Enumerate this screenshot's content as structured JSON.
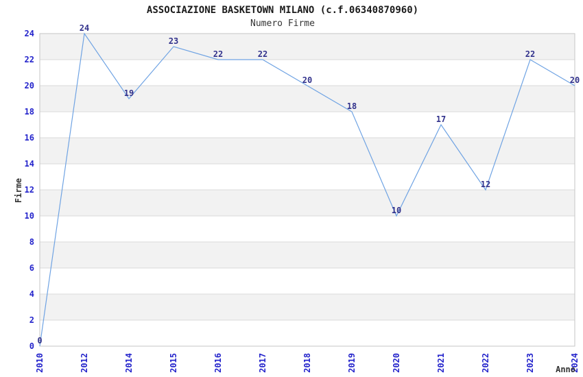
{
  "chart_data": {
    "type": "line",
    "title": "ASSOCIAZIONE BASKETOWN MILANO (c.f.06340870960)",
    "subtitle": "Numero Firme",
    "xlabel": "Anno",
    "ylabel": "Firme",
    "categories": [
      "2010",
      "2012",
      "2014",
      "2015",
      "2016",
      "2017",
      "2018",
      "2019",
      "2020",
      "2021",
      "2022",
      "2023",
      "2024"
    ],
    "values": [
      0,
      24,
      19,
      23,
      22,
      22,
      20,
      18,
      10,
      17,
      12,
      22,
      20
    ],
    "data_labels": [
      "0",
      "24",
      "19",
      "23",
      "22",
      "22",
      "20",
      "18",
      "10",
      "17",
      "12",
      "22",
      "20"
    ],
    "ylim": [
      0,
      24
    ],
    "ytick_step": 2,
    "yticks": [
      "0",
      "2",
      "4",
      "6",
      "8",
      "10",
      "12",
      "14",
      "16",
      "18",
      "20",
      "22",
      "24"
    ],
    "grid": true,
    "legend": "none",
    "colors": {
      "line": "#6fa3e3",
      "tick_label": "#2323cb",
      "data_label": "#32328c",
      "band": "#f2f2f2",
      "gridline": "#d9d9d9",
      "plot_border": "#c6c6c6",
      "title": "#1a1a1a",
      "subtitle": "#333333",
      "axis_title": "#333333",
      "background": "#ffffff"
    }
  }
}
